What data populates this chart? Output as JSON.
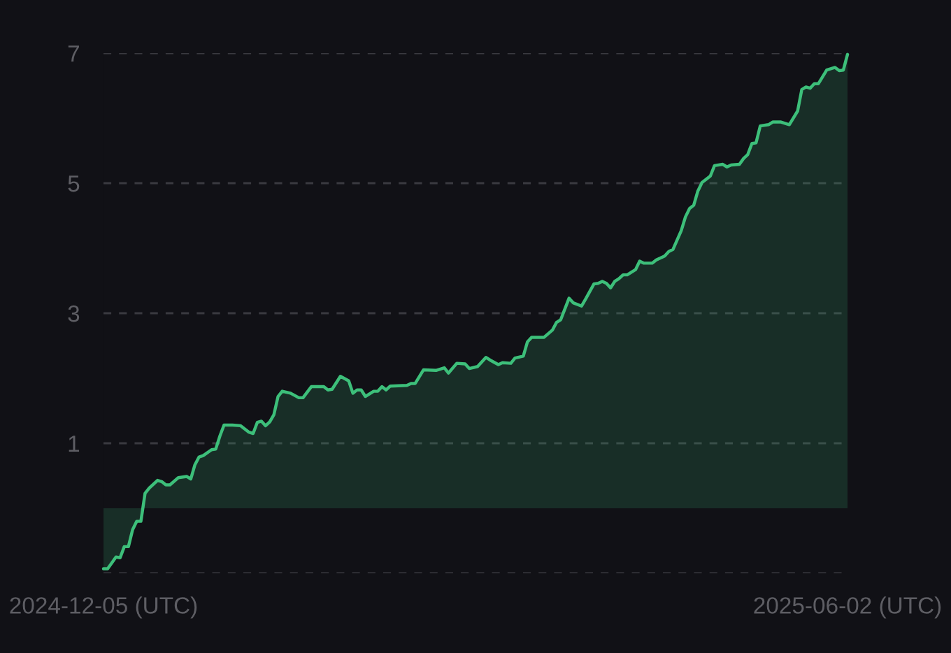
{
  "chart_data": {
    "type": "area",
    "x": [
      "2024-12-05",
      "2024-12-06",
      "2024-12-08",
      "2024-12-09",
      "2024-12-10",
      "2024-12-11",
      "2024-12-12",
      "2024-12-13",
      "2024-12-14",
      "2024-12-15",
      "2024-12-16",
      "2024-12-18",
      "2024-12-19",
      "2024-12-20",
      "2024-12-21",
      "2024-12-23",
      "2024-12-25",
      "2024-12-26",
      "2024-12-27",
      "2024-12-28",
      "2024-12-29",
      "2024-12-31",
      "2025-01-01",
      "2025-01-02",
      "2025-01-03",
      "2025-01-05",
      "2025-01-07",
      "2025-01-09",
      "2025-01-10",
      "2025-01-11",
      "2025-01-12",
      "2025-01-13",
      "2025-01-14",
      "2025-01-15",
      "2025-01-16",
      "2025-01-17",
      "2025-01-19",
      "2025-01-21",
      "2025-01-22",
      "2025-01-24",
      "2025-01-27",
      "2025-01-28",
      "2025-01-29",
      "2025-01-31",
      "2025-02-02",
      "2025-02-03",
      "2025-02-04",
      "2025-02-05",
      "2025-02-06",
      "2025-02-08",
      "2025-02-09",
      "2025-02-10",
      "2025-02-11",
      "2025-02-12",
      "2025-02-16",
      "2025-02-17",
      "2025-02-18",
      "2025-02-20",
      "2025-02-23",
      "2025-02-25",
      "2025-02-26",
      "2025-02-28",
      "2025-03-02",
      "2025-03-03",
      "2025-03-05",
      "2025-03-07",
      "2025-03-08",
      "2025-03-10",
      "2025-03-11",
      "2025-03-13",
      "2025-03-14",
      "2025-03-16",
      "2025-03-17",
      "2025-03-18",
      "2025-03-21",
      "2025-03-23",
      "2025-03-24",
      "2025-03-25",
      "2025-03-27",
      "2025-03-28",
      "2025-03-30",
      "2025-03-31",
      "2025-04-02",
      "2025-04-03",
      "2025-04-04",
      "2025-04-05",
      "2025-04-06",
      "2025-04-07",
      "2025-04-08",
      "2025-04-09",
      "2025-04-10",
      "2025-04-12",
      "2025-04-13",
      "2025-04-14",
      "2025-04-16",
      "2025-04-17",
      "2025-04-19",
      "2025-04-20",
      "2025-04-21",
      "2025-04-23",
      "2025-04-24",
      "2025-04-25",
      "2025-04-26",
      "2025-04-27",
      "2025-04-28",
      "2025-04-30",
      "2025-05-01",
      "2025-05-03",
      "2025-05-04",
      "2025-05-05",
      "2025-05-07",
      "2025-05-08",
      "2025-05-09",
      "2025-05-10",
      "2025-05-11",
      "2025-05-12",
      "2025-05-14",
      "2025-05-15",
      "2025-05-17",
      "2025-05-19",
      "2025-05-21",
      "2025-05-22",
      "2025-05-23",
      "2025-05-24",
      "2025-05-25",
      "2025-05-26",
      "2025-05-28",
      "2025-05-30",
      "2025-05-31",
      "2025-06-01",
      "2025-06-02"
    ],
    "series": [
      {
        "color": "#3dbf7a",
        "values": [
          -0.93,
          -0.93,
          -0.75,
          -0.76,
          -0.59,
          -0.59,
          -0.33,
          -0.2,
          -0.2,
          0.23,
          0.31,
          0.43,
          0.41,
          0.36,
          0.36,
          0.47,
          0.49,
          0.45,
          0.67,
          0.79,
          0.81,
          0.9,
          0.91,
          1.11,
          1.28,
          1.28,
          1.27,
          1.17,
          1.15,
          1.32,
          1.34,
          1.27,
          1.33,
          1.44,
          1.72,
          1.8,
          1.77,
          1.7,
          1.7,
          1.87,
          1.87,
          1.82,
          1.83,
          2.03,
          1.96,
          1.77,
          1.82,
          1.82,
          1.72,
          1.8,
          1.8,
          1.87,
          1.82,
          1.88,
          1.89,
          1.92,
          1.92,
          2.13,
          2.12,
          2.16,
          2.08,
          2.23,
          2.22,
          2.15,
          2.18,
          2.32,
          2.28,
          2.21,
          2.24,
          2.23,
          2.31,
          2.34,
          2.56,
          2.63,
          2.63,
          2.74,
          2.86,
          2.9,
          3.23,
          3.16,
          3.11,
          3.22,
          3.45,
          3.46,
          3.49,
          3.46,
          3.39,
          3.49,
          3.53,
          3.59,
          3.59,
          3.67,
          3.8,
          3.77,
          3.77,
          3.82,
          3.88,
          3.95,
          3.98,
          4.27,
          4.48,
          4.61,
          4.66,
          4.88,
          5.01,
          5.11,
          5.27,
          5.29,
          5.25,
          5.28,
          5.29,
          5.38,
          5.44,
          5.61,
          5.62,
          5.88,
          5.9,
          5.94,
          5.94,
          5.9,
          6.11,
          6.44,
          6.48,
          6.46,
          6.53,
          6.53,
          6.74,
          6.78,
          6.73,
          6.74,
          6.98
        ]
      }
    ],
    "xlim": [
      "2024-12-05",
      "2025-06-02"
    ],
    "xticks": [
      {
        "value": "2024-12-05",
        "label": "2024-12-05 (UTC)"
      },
      {
        "value": "2025-06-02",
        "label": "2025-06-02 (UTC)"
      }
    ],
    "ylim": [
      -1,
      7
    ],
    "yticks": [
      {
        "value": -1,
        "label": null
      },
      1,
      3,
      5,
      7
    ],
    "grid": "y",
    "line_style": "solid"
  }
}
